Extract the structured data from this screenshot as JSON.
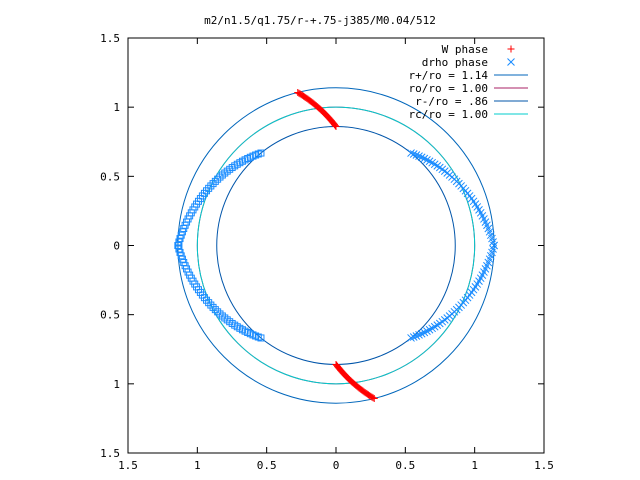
{
  "chart_data": {
    "type": "scatter",
    "title": "m2/n1.5/q1.75/r-+.75-j385/M0.04/512",
    "xlabel": "",
    "ylabel": "",
    "xlim": [
      -1.5,
      1.5
    ],
    "ylim": [
      -1.5,
      1.5
    ],
    "x_ticks": [
      -1.5,
      -1,
      -0.5,
      0,
      0.5,
      1,
      1.5
    ],
    "y_ticks": [
      -1.5,
      -1,
      -0.5,
      0,
      0.5,
      1,
      1.5
    ],
    "x_tick_labels": [
      "1.5",
      "1",
      "0.5",
      "0",
      "0.5",
      "1",
      "1.5"
    ],
    "y_tick_labels": [
      "1.5",
      "1",
      "0.5",
      "0",
      "0.5",
      "1",
      "1.5"
    ],
    "grid": false,
    "legend_position": "top-right",
    "series": [
      {
        "name": "W phase",
        "marker": "plus",
        "color": "#ff0000",
        "arcs": [
          {
            "radius_from": 0.86,
            "radius_to": 1.14,
            "angle_from_deg": 90,
            "angle_to_deg": 104
          },
          {
            "radius_from": 0.86,
            "radius_to": 1.14,
            "angle_from_deg": -90,
            "angle_to_deg": -76
          }
        ]
      },
      {
        "name": "drho phase",
        "marker": "cross",
        "color": "#1a8cff",
        "arcs": [
          {
            "radius_from": 0.86,
            "radius_to": 1.14,
            "angle_from_deg": 51,
            "angle_to_deg": 0
          },
          {
            "radius_from": 1.14,
            "radius_to": 0.86,
            "angle_from_deg": 0,
            "angle_to_deg": -51
          }
        ]
      },
      {
        "name": "",
        "marker": "square",
        "color": "#1a8cff",
        "arcs": [
          {
            "radius_from": 0.86,
            "radius_to": 1.14,
            "angle_from_deg": 129,
            "angle_to_deg": 180
          },
          {
            "radius_from": 1.14,
            "radius_to": 0.86,
            "angle_from_deg": 180,
            "angle_to_deg": 231
          }
        ]
      }
    ],
    "circles": [
      {
        "name": "r+/ro = 1.14",
        "radius": 1.14,
        "color": "#0066bb"
      },
      {
        "name": "ro/ro = 1.00",
        "radius": 1.0,
        "color": "#aa2266"
      },
      {
        "name": "r-/ro = .86",
        "radius": 0.86,
        "color": "#0055aa"
      },
      {
        "name": "rc/ro = 1.00",
        "radius": 1.0,
        "color": "#00cccc"
      }
    ]
  }
}
